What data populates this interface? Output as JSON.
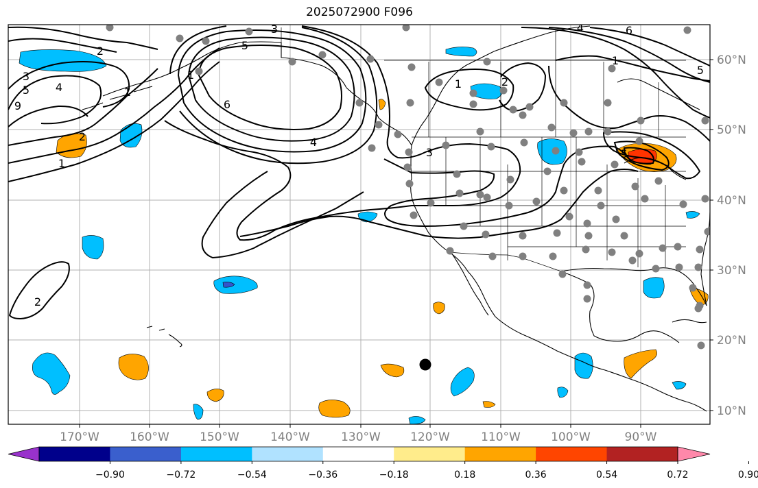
{
  "title": "2025072900 F096",
  "map": {
    "lat_labels": [
      "60°N",
      "50°N",
      "40°N",
      "30°N",
      "20°N",
      "10°N"
    ],
    "lon_labels": [
      "170°W",
      "160°W",
      "150°W",
      "140°W",
      "130°W",
      "120°W",
      "110°W",
      "100°W",
      "90°W"
    ],
    "contour_labels": [
      "3",
      "5",
      "2",
      "3",
      "5",
      "4",
      "9",
      "2",
      "1",
      "6",
      "4",
      "3",
      "1",
      "2",
      "1",
      "2",
      "4",
      "6",
      "5",
      "1",
      "5",
      "1"
    ],
    "colors": {
      "grid": "#b0b0b0",
      "coast": "#000000",
      "contour": "#000000",
      "station": "#808080",
      "marker": "#000000",
      "neg_fill": "#00bfff",
      "pos_fill": "#ffa500",
      "strong_pos_fill": "#ff3300",
      "strong_neg_fill": "#3355cc"
    }
  },
  "colorbar": {
    "labels": [
      "−0.90",
      "−0.72",
      "−0.54",
      "−0.36",
      "−0.18",
      "0.18",
      "0.36",
      "0.54",
      "0.72",
      "0.90"
    ],
    "colors": [
      "#9932cc",
      "#00008b",
      "#3a5fcd",
      "#00bfff",
      "#b0e2ff",
      "#ffffff",
      "#ffec8b",
      "#ffa500",
      "#ff4500",
      "#b22222",
      "#ff88aa"
    ]
  }
}
